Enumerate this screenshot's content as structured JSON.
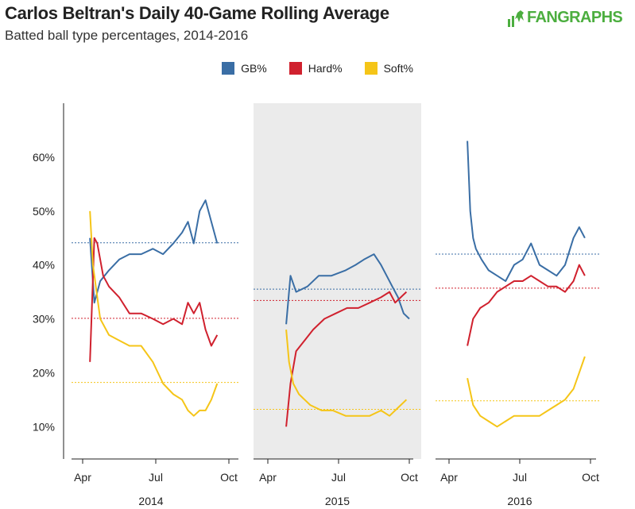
{
  "header": {
    "title": "Carlos Beltran's Daily 40-Game Rolling Average",
    "subtitle": "Batted ball type percentages, 2014-2016",
    "logo_text": "FANGRAPHS"
  },
  "colors": {
    "gb": "#3a6ea5",
    "hard": "#d0212e",
    "soft": "#f5c518",
    "shade": "#ebebeb"
  },
  "chart_data": {
    "type": "line",
    "title": "Carlos Beltran's Daily 40-Game Rolling Average",
    "subtitle": "Batted ball type percentages, 2014-2016",
    "ylabel": "",
    "ylim": [
      4,
      70
    ],
    "yticks": [
      10,
      20,
      30,
      40,
      50,
      60
    ],
    "ytick_labels": [
      "10%",
      "20%",
      "30%",
      "40%",
      "50%",
      "60%"
    ],
    "xtick_labels": [
      "Apr",
      "Jul",
      "Oct"
    ],
    "legend": [
      "GB%",
      "Hard%",
      "Soft%"
    ],
    "legend_position": "top-center",
    "panels": [
      {
        "year": "2014",
        "shaded": false,
        "averages": {
          "GB%": 44.1,
          "Hard%": 30.1,
          "Soft%": 18.2
        },
        "series": [
          {
            "name": "GB%",
            "x": [
              0.05,
              0.08,
              0.12,
              0.18,
              0.25,
              0.32,
              0.4,
              0.48,
              0.55,
              0.62,
              0.68,
              0.72,
              0.76,
              0.8,
              0.84,
              0.88,
              0.92
            ],
            "y": [
              45,
              33,
              37,
              39,
              41,
              42,
              42,
              43,
              42,
              44,
              46,
              48,
              44,
              50,
              52,
              48,
              44
            ]
          },
          {
            "name": "Hard%",
            "x": [
              0.05,
              0.08,
              0.1,
              0.14,
              0.18,
              0.25,
              0.32,
              0.4,
              0.48,
              0.55,
              0.62,
              0.68,
              0.72,
              0.76,
              0.8,
              0.84,
              0.88,
              0.92
            ],
            "y": [
              22,
              45,
              44,
              38,
              36,
              34,
              31,
              31,
              30,
              29,
              30,
              29,
              33,
              31,
              33,
              28,
              25,
              27
            ]
          },
          {
            "name": "Soft%",
            "x": [
              0.05,
              0.07,
              0.09,
              0.12,
              0.18,
              0.25,
              0.32,
              0.4,
              0.48,
              0.55,
              0.62,
              0.68,
              0.72,
              0.76,
              0.8,
              0.84,
              0.88,
              0.92
            ],
            "y": [
              50,
              40,
              36,
              30,
              27,
              26,
              25,
              25,
              22,
              18,
              16,
              15,
              13,
              12,
              13,
              13,
              15,
              18
            ]
          }
        ]
      },
      {
        "year": "2015",
        "shaded": true,
        "averages": {
          "GB%": 35.5,
          "Hard%": 33.4,
          "Soft%": 13.2
        },
        "series": [
          {
            "name": "GB%",
            "x": [
              0.13,
              0.16,
              0.2,
              0.28,
              0.36,
              0.45,
              0.55,
              0.62,
              0.68,
              0.75,
              0.8,
              0.84,
              0.88,
              0.92,
              0.96,
              1.0
            ],
            "y": [
              29,
              38,
              35,
              36,
              38,
              38,
              39,
              40,
              41,
              42,
              40,
              38,
              36,
              34,
              31,
              30
            ]
          },
          {
            "name": "Hard%",
            "x": [
              0.13,
              0.16,
              0.2,
              0.26,
              0.32,
              0.4,
              0.48,
              0.56,
              0.64,
              0.72,
              0.8,
              0.86,
              0.9,
              0.94,
              0.98
            ],
            "y": [
              10,
              18,
              24,
              26,
              28,
              30,
              31,
              32,
              32,
              33,
              34,
              35,
              33,
              34,
              35
            ]
          },
          {
            "name": "Soft%",
            "x": [
              0.13,
              0.15,
              0.18,
              0.22,
              0.3,
              0.38,
              0.46,
              0.55,
              0.64,
              0.72,
              0.8,
              0.86,
              0.9,
              0.94,
              0.98
            ],
            "y": [
              28,
              22,
              18,
              16,
              14,
              13,
              13,
              12,
              12,
              12,
              13,
              12,
              13,
              14,
              15
            ]
          }
        ]
      },
      {
        "year": "2016",
        "shaded": false,
        "averages": {
          "GB%": 42.0,
          "Hard%": 35.7,
          "Soft%": 14.8
        },
        "series": [
          {
            "name": "GB%",
            "x": [
              0.13,
              0.15,
              0.17,
              0.19,
              0.23,
              0.28,
              0.34,
              0.4,
              0.46,
              0.52,
              0.58,
              0.64,
              0.7,
              0.76,
              0.82,
              0.88,
              0.92,
              0.96
            ],
            "y": [
              63,
              50,
              45,
              43,
              41,
              39,
              38,
              37,
              40,
              41,
              44,
              40,
              39,
              38,
              40,
              45,
              47,
              45
            ]
          },
          {
            "name": "Hard%",
            "x": [
              0.13,
              0.17,
              0.22,
              0.28,
              0.34,
              0.4,
              0.46,
              0.52,
              0.58,
              0.64,
              0.7,
              0.76,
              0.82,
              0.88,
              0.92,
              0.96
            ],
            "y": [
              25,
              30,
              32,
              33,
              35,
              36,
              37,
              37,
              38,
              37,
              36,
              36,
              35,
              37,
              40,
              38
            ]
          },
          {
            "name": "Soft%",
            "x": [
              0.13,
              0.17,
              0.22,
              0.28,
              0.34,
              0.4,
              0.46,
              0.52,
              0.58,
              0.64,
              0.7,
              0.76,
              0.82,
              0.88,
              0.92,
              0.96
            ],
            "y": [
              19,
              14,
              12,
              11,
              10,
              11,
              12,
              12,
              12,
              12,
              13,
              14,
              15,
              17,
              20,
              23
            ]
          }
        ]
      }
    ]
  }
}
